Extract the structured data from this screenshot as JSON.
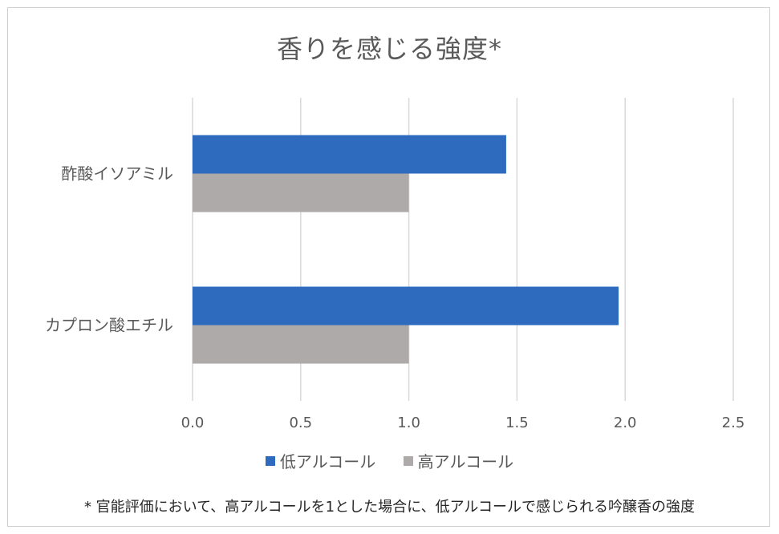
{
  "colors": {
    "low": "#2e6bbf",
    "high": "#aeaaaa",
    "grid": "#d9d9d9",
    "text": "#595959"
  },
  "note": "* 官能評価において、高アルコールを1とした場合に、低アルコールで感じられる吟醸香の強度",
  "chart_data": {
    "type": "bar",
    "orientation": "horizontal",
    "title": "香りを感じる強度*",
    "categories": [
      "酢酸イソアミル",
      "カプロン酸エチル"
    ],
    "series": [
      {
        "name": "低アルコール",
        "values": [
          1.45,
          1.97
        ]
      },
      {
        "name": "高アルコール",
        "values": [
          1.0,
          1.0
        ]
      }
    ],
    "xlabel": "",
    "ylabel": "",
    "xlim": [
      0,
      2.5
    ],
    "ticks": [
      "0.0",
      "0.5",
      "1.0",
      "1.5",
      "2.0",
      "2.5"
    ],
    "tick_values": [
      0,
      0.5,
      1.0,
      1.5,
      2.0,
      2.5
    ],
    "grid": true,
    "legend_position": "bottom"
  }
}
